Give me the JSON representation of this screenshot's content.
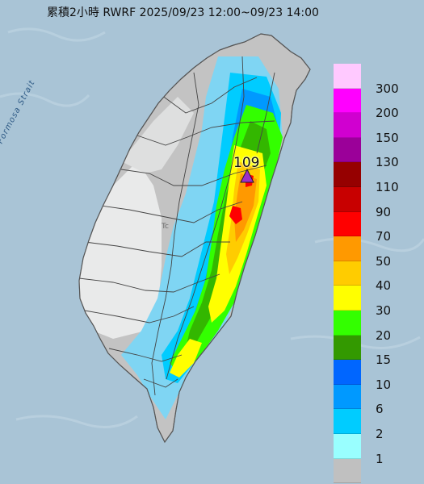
{
  "title": "累積2小時 RWRF 2025/09/23 12:00~09/23 14:00",
  "max_value": "109",
  "strait_label": "Formosa Strait",
  "map_labels": {
    "tc": "Tc"
  },
  "legend": {
    "labels": [
      "300",
      "200",
      "150",
      "130",
      "110",
      "90",
      "70",
      "50",
      "40",
      "30",
      "20",
      "15",
      "10",
      "6",
      "2",
      "1"
    ],
    "colors": [
      "#ffc9ff",
      "#ff00ff",
      "#d000d0",
      "#9b0099",
      "#960000",
      "#c80000",
      "#ff0000",
      "#ff9900",
      "#ffcc00",
      "#ffff00",
      "#33ff00",
      "#339900",
      "#0066ff",
      "#0099ff",
      "#00ccff",
      "#99ffff",
      "#c0c0c0"
    ]
  },
  "colors": {
    "sea": "#a9c4d6",
    "land_gray": "#c3c3c3",
    "land_light": "#e9eaea",
    "light_blue": "#7fd5f3",
    "marker": "#9b2fc9"
  }
}
